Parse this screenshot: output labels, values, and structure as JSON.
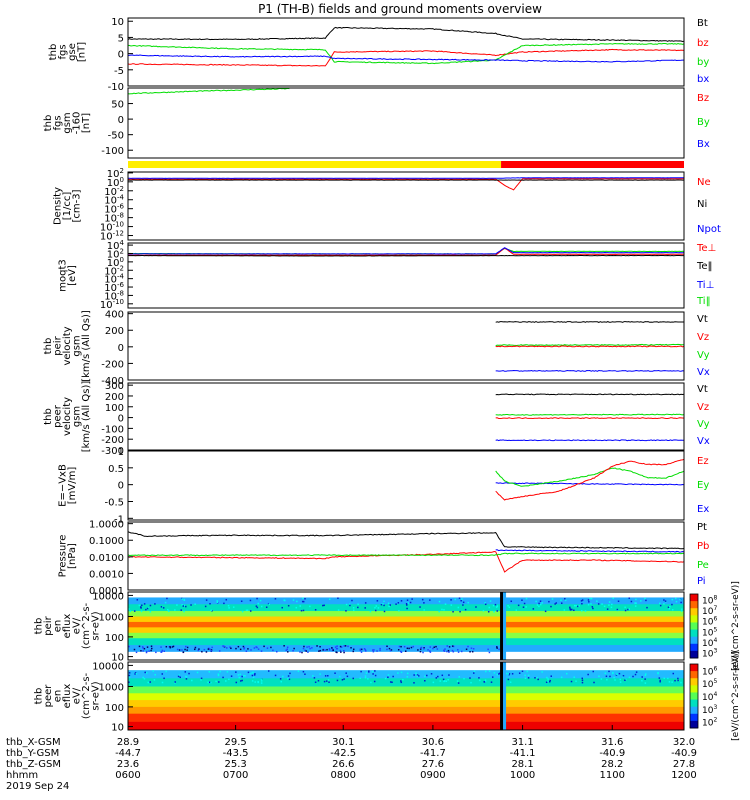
{
  "title": "P1 (TH-B) fields and ground moments overview",
  "chart_data": [
    {
      "type": "line",
      "ylabel": [
        "thb",
        "fgs",
        "gse",
        "[nT]"
      ],
      "yticks": [
        10,
        5,
        0,
        -5,
        -10
      ],
      "ylim": [
        -10,
        11
      ],
      "legend": [
        {
          "name": "Bt",
          "color": "#000000"
        },
        {
          "name": "bz",
          "color": "#ff0000"
        },
        {
          "name": "by",
          "color": "#00dd00"
        },
        {
          "name": "bx",
          "color": "#0000ff"
        }
      ],
      "series": [
        {
          "name": "Bt",
          "color": "#000000",
          "x": [
            28.9,
            29.5,
            30.0,
            30.05,
            30.6,
            30.95,
            31.1,
            31.6,
            32.0
          ],
          "y": [
            4.5,
            4.4,
            4.8,
            8.0,
            7.6,
            6.2,
            4.5,
            4.2,
            3.8
          ]
        },
        {
          "name": "bz",
          "color": "#ff0000",
          "x": [
            28.9,
            29.5,
            30.0,
            30.05,
            30.6,
            30.95,
            31.1,
            31.6,
            32.0
          ],
          "y": [
            -3.2,
            -3.5,
            -3.8,
            0.5,
            0.8,
            -0.5,
            0.5,
            1.2,
            1.0
          ]
        },
        {
          "name": "by",
          "color": "#00dd00",
          "x": [
            28.9,
            29.5,
            30.0,
            30.05,
            30.6,
            30.95,
            31.1,
            31.6,
            32.0
          ],
          "y": [
            2.5,
            1.5,
            1.2,
            -2.5,
            -3.0,
            -2.0,
            2.5,
            3.0,
            3.0
          ]
        },
        {
          "name": "bx",
          "color": "#0000ff",
          "x": [
            28.9,
            29.5,
            30.0,
            30.05,
            30.6,
            30.95,
            31.1,
            31.6,
            32.0
          ],
          "y": [
            -0.5,
            -1.0,
            -0.8,
            -1.5,
            -1.8,
            -2.0,
            -2.2,
            -2.5,
            -2.0
          ]
        }
      ]
    },
    {
      "type": "line",
      "ylabel": [
        "thb",
        "fgs",
        "gsm",
        "-160",
        "[nT]"
      ],
      "yticks": [
        50,
        0,
        -50,
        -100
      ],
      "ylim": [
        -125,
        100
      ],
      "legend": [
        {
          "name": "Bz",
          "color": "#ff0000"
        },
        {
          "name": "By",
          "color": "#00dd00"
        },
        {
          "name": "Bx",
          "color": "#0000ff"
        }
      ],
      "series": [
        {
          "name": "By",
          "color": "#00dd00",
          "x": [
            28.9,
            29.3,
            29.8
          ],
          "y": [
            82,
            90,
            98
          ]
        }
      ]
    },
    {
      "type": "line",
      "ylabel": [
        "Density",
        "[1/cc]",
        "[cm-3]"
      ],
      "ytick_exponents": [
        2,
        0,
        -2,
        -4,
        -6,
        -8,
        -10,
        -12
      ],
      "ylim_log10": [
        -13,
        2.2
      ],
      "legend": [
        {
          "name": "Ne",
          "color": "#ff0000"
        },
        {
          "name": "Ni",
          "color": "#000000"
        },
        {
          "name": "Npot",
          "color": "#0000ff"
        }
      ],
      "series": [
        {
          "name": "Ne",
          "color": "#ff0000",
          "x": [
            28.9,
            30.95,
            31.0,
            31.05,
            31.1,
            32.0
          ],
          "y_log10": [
            0.6,
            0.6,
            -0.8,
            -1.8,
            0.7,
            0.7
          ]
        },
        {
          "name": "Npot",
          "color": "#0000ff",
          "x": [
            28.9,
            30.95,
            31.1,
            32.0
          ],
          "y_log10": [
            0.8,
            0.8,
            0.9,
            0.9
          ]
        },
        {
          "name": "Ni",
          "color": "#000000",
          "x": [
            28.9,
            32.0
          ],
          "y_log10": [
            0.4,
            0.4
          ]
        }
      ]
    },
    {
      "type": "line",
      "ylabel": [
        "moqt3",
        "[eV]"
      ],
      "ytick_exponents": [
        4,
        2,
        0,
        -2,
        -4,
        -6,
        -8,
        -10
      ],
      "ylim_log10": [
        -11,
        4.5
      ],
      "legend": [
        {
          "name": "Te⊥",
          "color": "#ff0000"
        },
        {
          "name": "Te‖",
          "color": "#000000"
        },
        {
          "name": "Ti⊥",
          "color": "#0000ff"
        },
        {
          "name": "Ti‖",
          "color": "#00dd00"
        }
      ],
      "series": [
        {
          "name": "Ti‖",
          "color": "#00dd00",
          "x": [
            28.9,
            29.8,
            30.95,
            31.0,
            31.05,
            32.0
          ],
          "y_log10": [
            2.0,
            1.9,
            1.9,
            3.2,
            2.5,
            2.5
          ]
        },
        {
          "name": "Te⊥",
          "color": "#ff0000",
          "x": [
            28.9,
            30.95,
            31.0,
            31.05,
            32.0
          ],
          "y_log10": [
            1.6,
            1.6,
            3.3,
            1.8,
            1.8
          ]
        },
        {
          "name": "Ti⊥",
          "color": "#0000ff",
          "x": [
            28.9,
            30.95,
            31.0,
            31.05,
            32.0
          ],
          "y_log10": [
            1.9,
            1.9,
            3.4,
            2.2,
            2.2
          ]
        },
        {
          "name": "Te‖",
          "color": "#000000",
          "x": [
            28.9,
            30.0,
            31.05,
            32.0
          ],
          "y_log10": [
            1.5,
            1.4,
            1.5,
            1.5
          ]
        }
      ]
    },
    {
      "type": "line",
      "ylabel": [
        "thb",
        "peir",
        "velocity",
        "gsm",
        "[km/s (All Qs)]"
      ],
      "yticks": [
        400,
        200,
        0,
        -200,
        -400
      ],
      "ylim": [
        -400,
        420
      ],
      "legend": [
        {
          "name": "Vt",
          "color": "#000000"
        },
        {
          "name": "Vz",
          "color": "#ff0000"
        },
        {
          "name": "Vy",
          "color": "#00dd00"
        },
        {
          "name": "Vx",
          "color": "#0000ff"
        }
      ],
      "series": [
        {
          "name": "Vt",
          "color": "#000000",
          "x": [
            30.95,
            32.0
          ],
          "y": [
            300,
            300
          ]
        },
        {
          "name": "Vy",
          "color": "#00dd00",
          "x": [
            30.95,
            32.0
          ],
          "y": [
            20,
            25
          ]
        },
        {
          "name": "Vz",
          "color": "#ff0000",
          "x": [
            30.95,
            32.0
          ],
          "y": [
            5,
            5
          ]
        },
        {
          "name": "Vx",
          "color": "#0000ff",
          "x": [
            30.95,
            32.0
          ],
          "y": [
            -290,
            -290
          ]
        }
      ]
    },
    {
      "type": "line",
      "ylabel": [
        "thb",
        "peer",
        "velocity",
        "gsm",
        "[km/s (All Qs)]"
      ],
      "yticks": [
        300,
        200,
        100,
        0,
        -100,
        -200,
        -300
      ],
      "ylim": [
        -300,
        320
      ],
      "legend": [
        {
          "name": "Vt",
          "color": "#000000"
        },
        {
          "name": "Vz",
          "color": "#ff0000"
        },
        {
          "name": "Vy",
          "color": "#00dd00"
        },
        {
          "name": "Vx",
          "color": "#0000ff"
        }
      ],
      "series": [
        {
          "name": "Vt",
          "color": "#000000",
          "x": [
            30.95,
            32.0
          ],
          "y": [
            215,
            215
          ]
        },
        {
          "name": "Vy",
          "color": "#00dd00",
          "x": [
            30.95,
            32.0
          ],
          "y": [
            25,
            28
          ]
        },
        {
          "name": "Vz",
          "color": "#ff0000",
          "x": [
            30.95,
            32.0
          ],
          "y": [
            -5,
            -5
          ]
        },
        {
          "name": "Vx",
          "color": "#0000ff",
          "x": [
            30.95,
            32.0
          ],
          "y": [
            -210,
            -210
          ]
        }
      ]
    },
    {
      "type": "line",
      "ylabel": [
        "E=−VxB",
        "[mV/m]"
      ],
      "yticks": [
        1.0,
        0.5,
        0.0,
        -0.5,
        -1.0
      ],
      "ylim": [
        -1.05,
        1.0
      ],
      "legend": [
        {
          "name": "Ez",
          "color": "#ff0000"
        },
        {
          "name": "Ey",
          "color": "#00dd00"
        },
        {
          "name": "Ex",
          "color": "#0000ff"
        }
      ],
      "series": [
        {
          "name": "Ex",
          "color": "#0000ff",
          "x": [
            30.95,
            31.5,
            32.0
          ],
          "y": [
            0.05,
            0.02,
            0.0
          ]
        },
        {
          "name": "Ey",
          "color": "#00dd00",
          "x": [
            30.95,
            31.0,
            31.1,
            31.3,
            31.5,
            31.6,
            31.7,
            31.8,
            31.9,
            32.0
          ],
          "y": [
            0.4,
            0.1,
            -0.05,
            0.1,
            0.3,
            0.5,
            0.4,
            0.2,
            0.2,
            0.4
          ]
        },
        {
          "name": "Ez",
          "color": "#ff0000",
          "x": [
            30.95,
            31.0,
            31.1,
            31.3,
            31.5,
            31.6,
            31.7,
            31.8,
            31.9,
            32.0
          ],
          "y": [
            -0.2,
            -0.45,
            -0.35,
            -0.2,
            0.2,
            0.55,
            0.7,
            0.6,
            0.6,
            0.75
          ]
        }
      ]
    },
    {
      "type": "line",
      "ylabel": [
        "Pressure",
        "[nPa]"
      ],
      "yticks": [
        "1.0000",
        "0.1000",
        "0.0100",
        "0.0010",
        "0.0001"
      ],
      "ylim_log10": [
        -4,
        0.1
      ],
      "legend": [
        {
          "name": "Pt",
          "color": "#000000"
        },
        {
          "name": "Pb",
          "color": "#ff0000"
        },
        {
          "name": "Pe",
          "color": "#00dd00"
        },
        {
          "name": "Pi",
          "color": "#0000ff"
        }
      ],
      "series": [
        {
          "name": "Pt",
          "color": "#000000",
          "x": [
            28.9,
            29.0,
            29.5,
            30.0,
            30.6,
            30.95,
            31.0,
            31.5,
            32.0
          ],
          "y_log10": [
            -0.5,
            -0.75,
            -0.7,
            -0.72,
            -0.6,
            -0.55,
            -1.4,
            -1.45,
            -1.5
          ]
        },
        {
          "name": "Pb",
          "color": "#ff0000",
          "x": [
            28.9,
            29.5,
            30.0,
            30.05,
            30.6,
            30.95,
            31.0,
            31.1,
            31.5,
            32.0
          ],
          "y_log10": [
            -2.0,
            -2.05,
            -2.1,
            -2.0,
            -1.85,
            -1.7,
            -2.9,
            -2.2,
            -2.2,
            -2.3
          ]
        },
        {
          "name": "Pe",
          "color": "#00dd00",
          "x": [
            28.9,
            30.95,
            31.0,
            32.0
          ],
          "y_log10": [
            -1.9,
            -1.9,
            -1.8,
            -1.8
          ]
        },
        {
          "name": "Pi",
          "color": "#0000ff",
          "x": [
            30.95,
            32.0
          ],
          "y_log10": [
            -1.6,
            -1.7
          ]
        }
      ]
    },
    {
      "type": "heatmap",
      "ylabel": [
        "thb",
        "peir",
        "en",
        "eflux",
        "eV/",
        "(cm^2-s-",
        "sr-eV)"
      ],
      "yticks": [
        "10000",
        "1000",
        "100",
        "10"
      ],
      "colorbar_label": "[eV/(cm^2-s-sr-eV)]",
      "colorbar_exponents": [
        8,
        7,
        6,
        5,
        4,
        3
      ]
    },
    {
      "type": "heatmap",
      "ylabel": [
        "thb",
        "peer",
        "en",
        "eflux",
        "eV/",
        "(cm^2-s-",
        "sr-eV)"
      ],
      "yticks": [
        "10000",
        "1000",
        "100",
        "10"
      ],
      "colorbar_label": "[eV/(cm^2-s-sr-eV)]",
      "colorbar_exponents": [
        6,
        5,
        4,
        3,
        2
      ]
    }
  ],
  "flag_bar": {
    "segments": [
      {
        "from": 28.9,
        "to": 30.98,
        "color": "#ffee00"
      },
      {
        "from": 30.98,
        "to": 32.0,
        "color": "#ff0000"
      }
    ]
  },
  "x_axis": {
    "range": [
      28.9,
      32.0
    ],
    "row_labels": [
      "thb_X-GSM",
      "thb_Y-GSM",
      "thb_Z-GSM",
      "hhmm",
      "2019 Sep 24"
    ],
    "ticks": [
      {
        "x": 28.9,
        "rows": [
          "28.9",
          "-44.7",
          "23.6",
          "0600"
        ]
      },
      {
        "x": 29.5,
        "rows": [
          "29.5",
          "-43.5",
          "25.3",
          "0700"
        ]
      },
      {
        "x": 30.1,
        "rows": [
          "30.1",
          "-42.5",
          "26.6",
          "0800"
        ]
      },
      {
        "x": 30.6,
        "rows": [
          "30.6",
          "-41.7",
          "27.6",
          "0900"
        ]
      },
      {
        "x": 31.1,
        "rows": [
          "31.1",
          "-41.1",
          "28.1",
          "1000"
        ]
      },
      {
        "x": 31.6,
        "rows": [
          "31.6",
          "-40.9",
          "28.2",
          "1100"
        ]
      },
      {
        "x": 32.0,
        "rows": [
          "32.0",
          "-40.9",
          "27.8",
          "1200"
        ]
      }
    ]
  }
}
